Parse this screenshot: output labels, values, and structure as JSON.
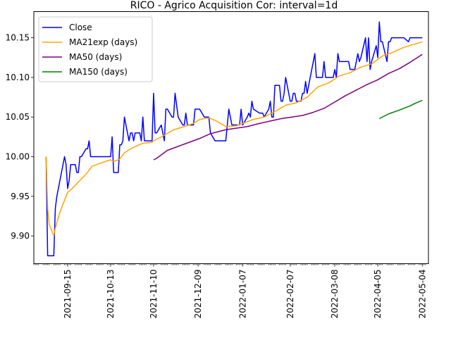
{
  "chart_data": {
    "type": "line",
    "title": "RICO - Agrico Acquisition Cor: interval=1d",
    "xlabel": "",
    "ylabel": "",
    "x_domain": [
      "2021-08-24",
      "2022-05-08"
    ],
    "ylim": [
      9.865,
      10.183
    ],
    "x_ticks": [
      "2021-09-15",
      "2021-10-13",
      "2021-11-10",
      "2021-12-09",
      "2022-01-07",
      "2022-02-07",
      "2022-03-08",
      "2022-04-05",
      "2022-05-04"
    ],
    "y_ticks": [
      "9.90",
      "9.95",
      "10.00",
      "10.05",
      "10.10",
      "10.15"
    ],
    "legend": {
      "position": "top-left",
      "entries": [
        "Close",
        "MA21exp (days)",
        "MA50 (days)",
        "MA150 (days)"
      ]
    },
    "colors": {
      "Close": "#0000ff",
      "MA21exp (days)": "#ffa500",
      "MA50 (days)": "#800080",
      "MA150 (days)": "#008000"
    },
    "series": [
      {
        "name": "Close",
        "points": [
          [
            "2021-09-01",
            10.0
          ],
          [
            "2021-09-02",
            9.875
          ],
          [
            "2021-09-03",
            9.875
          ],
          [
            "2021-09-06",
            9.875
          ],
          [
            "2021-09-07",
            9.935
          ],
          [
            "2021-09-08",
            9.95
          ],
          [
            "2021-09-09",
            9.96
          ],
          [
            "2021-09-10",
            9.97
          ],
          [
            "2021-09-13",
            10.0
          ],
          [
            "2021-09-14",
            9.99
          ],
          [
            "2021-09-15",
            9.96
          ],
          [
            "2021-09-16",
            9.97
          ],
          [
            "2021-09-17",
            9.99
          ],
          [
            "2021-09-20",
            9.99
          ],
          [
            "2021-09-21",
            9.98
          ],
          [
            "2021-09-22",
            9.98
          ],
          [
            "2021-09-23",
            10.0
          ],
          [
            "2021-09-24",
            10.0
          ],
          [
            "2021-09-27",
            10.01
          ],
          [
            "2021-09-28",
            10.01
          ],
          [
            "2021-09-29",
            10.02
          ],
          [
            "2021-09-30",
            10.0
          ],
          [
            "2021-10-01",
            10.0
          ],
          [
            "2021-10-04",
            10.0
          ],
          [
            "2021-10-05",
            10.0
          ],
          [
            "2021-10-06",
            10.0
          ],
          [
            "2021-10-07",
            10.0
          ],
          [
            "2021-10-08",
            10.0
          ],
          [
            "2021-10-11",
            10.0
          ],
          [
            "2021-10-12",
            10.0
          ],
          [
            "2021-10-13",
            10.0
          ],
          [
            "2021-10-14",
            10.025
          ],
          [
            "2021-10-15",
            9.98
          ],
          [
            "2021-10-18",
            9.98
          ],
          [
            "2021-10-19",
            10.015
          ],
          [
            "2021-10-20",
            10.015
          ],
          [
            "2021-10-21",
            10.02
          ],
          [
            "2021-10-22",
            10.05
          ],
          [
            "2021-10-25",
            10.02
          ],
          [
            "2021-10-26",
            10.03
          ],
          [
            "2021-10-27",
            10.03
          ],
          [
            "2021-10-28",
            10.02
          ],
          [
            "2021-10-29",
            10.03
          ],
          [
            "2021-11-01",
            10.03
          ],
          [
            "2021-11-02",
            10.02
          ],
          [
            "2021-11-03",
            10.05
          ],
          [
            "2021-11-04",
            10.02
          ],
          [
            "2021-11-05",
            10.02
          ],
          [
            "2021-11-08",
            10.02
          ],
          [
            "2021-11-09",
            10.02
          ],
          [
            "2021-11-10",
            10.08
          ],
          [
            "2021-11-11",
            10.03
          ],
          [
            "2021-11-12",
            10.03
          ],
          [
            "2021-11-15",
            10.04
          ],
          [
            "2021-11-16",
            10.03
          ],
          [
            "2021-11-17",
            10.02
          ],
          [
            "2021-11-18",
            10.06
          ],
          [
            "2021-11-19",
            10.06
          ],
          [
            "2021-11-22",
            10.05
          ],
          [
            "2021-11-23",
            10.05
          ],
          [
            "2021-11-24",
            10.08
          ],
          [
            "2021-11-26",
            10.05
          ],
          [
            "2021-11-29",
            10.04
          ],
          [
            "2021-11-30",
            10.04
          ],
          [
            "2021-12-01",
            10.055
          ],
          [
            "2021-12-02",
            10.04
          ],
          [
            "2021-12-03",
            10.04
          ],
          [
            "2021-12-06",
            10.04
          ],
          [
            "2021-12-07",
            10.06
          ],
          [
            "2021-12-08",
            10.06
          ],
          [
            "2021-12-09",
            10.06
          ],
          [
            "2021-12-10",
            10.06
          ],
          [
            "2021-12-13",
            10.05
          ],
          [
            "2021-12-14",
            10.05
          ],
          [
            "2021-12-15",
            10.05
          ],
          [
            "2021-12-16",
            10.05
          ],
          [
            "2021-12-17",
            10.03
          ],
          [
            "2021-12-20",
            10.02
          ],
          [
            "2021-12-21",
            10.02
          ],
          [
            "2021-12-22",
            10.02
          ],
          [
            "2021-12-23",
            10.02
          ],
          [
            "2021-12-27",
            10.02
          ],
          [
            "2021-12-28",
            10.04
          ],
          [
            "2021-12-29",
            10.06
          ],
          [
            "2021-12-30",
            10.05
          ],
          [
            "2021-12-31",
            10.04
          ],
          [
            "2022-01-03",
            10.04
          ],
          [
            "2022-01-04",
            10.04
          ],
          [
            "2022-01-05",
            10.04
          ],
          [
            "2022-01-06",
            10.06
          ],
          [
            "2022-01-07",
            10.04
          ],
          [
            "2022-01-10",
            10.05
          ],
          [
            "2022-01-11",
            10.055
          ],
          [
            "2022-01-12",
            10.05
          ],
          [
            "2022-01-13",
            10.07
          ],
          [
            "2022-01-14",
            10.06
          ],
          [
            "2022-01-18",
            10.055
          ],
          [
            "2022-01-19",
            10.055
          ],
          [
            "2022-01-20",
            10.055
          ],
          [
            "2022-01-21",
            10.05
          ],
          [
            "2022-01-24",
            10.06
          ],
          [
            "2022-01-25",
            10.07
          ],
          [
            "2022-01-26",
            10.05
          ],
          [
            "2022-01-27",
            10.05
          ],
          [
            "2022-01-28",
            10.09
          ],
          [
            "2022-01-31",
            10.09
          ],
          [
            "2022-02-01",
            10.07
          ],
          [
            "2022-02-02",
            10.07
          ],
          [
            "2022-02-03",
            10.08
          ],
          [
            "2022-02-04",
            10.1
          ],
          [
            "2022-02-07",
            10.07
          ],
          [
            "2022-02-08",
            10.07
          ],
          [
            "2022-02-09",
            10.08
          ],
          [
            "2022-02-10",
            10.08
          ],
          [
            "2022-02-11",
            10.07
          ],
          [
            "2022-02-14",
            10.07
          ],
          [
            "2022-02-15",
            10.08
          ],
          [
            "2022-02-16",
            10.08
          ],
          [
            "2022-02-17",
            10.095
          ],
          [
            "2022-02-18",
            10.08
          ],
          [
            "2022-02-22",
            10.12
          ],
          [
            "2022-02-23",
            10.13
          ],
          [
            "2022-02-24",
            10.1
          ],
          [
            "2022-02-25",
            10.1
          ],
          [
            "2022-02-28",
            10.1
          ],
          [
            "2022-03-01",
            10.12
          ],
          [
            "2022-03-02",
            10.1
          ],
          [
            "2022-03-03",
            10.1
          ],
          [
            "2022-03-04",
            10.1
          ],
          [
            "2022-03-07",
            10.1
          ],
          [
            "2022-03-08",
            10.11
          ],
          [
            "2022-03-09",
            10.1
          ],
          [
            "2022-03-10",
            10.13
          ],
          [
            "2022-03-11",
            10.12
          ],
          [
            "2022-03-14",
            10.12
          ],
          [
            "2022-03-15",
            10.12
          ],
          [
            "2022-03-16",
            10.12
          ],
          [
            "2022-03-17",
            10.12
          ],
          [
            "2022-03-18",
            10.11
          ],
          [
            "2022-03-21",
            10.11
          ],
          [
            "2022-03-22",
            10.12
          ],
          [
            "2022-03-23",
            10.13
          ],
          [
            "2022-03-24",
            10.12
          ],
          [
            "2022-03-25",
            10.125
          ],
          [
            "2022-03-28",
            10.15
          ],
          [
            "2022-03-29",
            10.12
          ],
          [
            "2022-03-30",
            10.15
          ],
          [
            "2022-03-31",
            10.11
          ],
          [
            "2022-04-01",
            10.12
          ],
          [
            "2022-04-04",
            10.14
          ],
          [
            "2022-04-05",
            10.125
          ],
          [
            "2022-04-06",
            10.17
          ],
          [
            "2022-04-07",
            10.145
          ],
          [
            "2022-04-08",
            10.145
          ],
          [
            "2022-04-11",
            10.12
          ],
          [
            "2022-04-12",
            10.145
          ],
          [
            "2022-04-13",
            10.145
          ],
          [
            "2022-04-14",
            10.15
          ],
          [
            "2022-04-18",
            10.15
          ],
          [
            "2022-04-19",
            10.15
          ],
          [
            "2022-04-20",
            10.15
          ],
          [
            "2022-04-21",
            10.15
          ],
          [
            "2022-04-22",
            10.15
          ],
          [
            "2022-04-25",
            10.145
          ],
          [
            "2022-04-26",
            10.15
          ],
          [
            "2022-04-27",
            10.15
          ],
          [
            "2022-04-28",
            10.15
          ],
          [
            "2022-04-29",
            10.15
          ],
          [
            "2022-05-02",
            10.15
          ],
          [
            "2022-05-03",
            10.15
          ],
          [
            "2022-05-04",
            10.15
          ]
        ]
      },
      {
        "name": "MA21exp (days)",
        "points": [
          [
            "2021-09-01",
            10.0
          ],
          [
            "2021-09-02",
            9.935
          ],
          [
            "2021-09-03",
            9.915
          ],
          [
            "2021-09-06",
            9.9
          ],
          [
            "2021-09-07",
            9.91
          ],
          [
            "2021-09-10",
            9.93
          ],
          [
            "2021-09-15",
            9.955
          ],
          [
            "2021-09-17",
            9.958
          ],
          [
            "2021-09-22",
            9.968
          ],
          [
            "2021-09-27",
            9.978
          ],
          [
            "2021-10-01",
            9.988
          ],
          [
            "2021-10-08",
            9.993
          ],
          [
            "2021-10-13",
            9.996
          ],
          [
            "2021-10-15",
            9.994
          ],
          [
            "2021-10-19",
            9.997
          ],
          [
            "2021-10-22",
            10.005
          ],
          [
            "2021-10-28",
            10.012
          ],
          [
            "2021-11-03",
            10.017
          ],
          [
            "2021-11-09",
            10.018
          ],
          [
            "2021-11-10",
            10.02
          ],
          [
            "2021-11-16",
            10.026
          ],
          [
            "2021-11-23",
            10.034
          ],
          [
            "2021-11-30",
            10.038
          ],
          [
            "2021-12-06",
            10.042
          ],
          [
            "2021-12-10",
            10.047
          ],
          [
            "2021-12-16",
            10.049
          ],
          [
            "2021-12-21",
            10.045
          ],
          [
            "2021-12-27",
            10.038
          ],
          [
            "2022-01-03",
            10.039
          ],
          [
            "2022-01-07",
            10.042
          ],
          [
            "2022-01-14",
            10.047
          ],
          [
            "2022-01-21",
            10.05
          ],
          [
            "2022-01-28",
            10.057
          ],
          [
            "2022-02-04",
            10.065
          ],
          [
            "2022-02-11",
            10.068
          ],
          [
            "2022-02-18",
            10.075
          ],
          [
            "2022-02-25",
            10.088
          ],
          [
            "2022-03-04",
            10.093
          ],
          [
            "2022-03-11",
            10.102
          ],
          [
            "2022-03-18",
            10.106
          ],
          [
            "2022-03-25",
            10.113
          ],
          [
            "2022-04-01",
            10.117
          ],
          [
            "2022-04-08",
            10.127
          ],
          [
            "2022-04-14",
            10.131
          ],
          [
            "2022-04-22",
            10.138
          ],
          [
            "2022-04-29",
            10.142
          ],
          [
            "2022-05-04",
            10.145
          ]
        ]
      },
      {
        "name": "MA50 (days)",
        "points": [
          [
            "2021-11-10",
            9.996
          ],
          [
            "2021-11-12",
            9.998
          ],
          [
            "2021-11-19",
            10.008
          ],
          [
            "2021-11-26",
            10.013
          ],
          [
            "2021-12-03",
            10.018
          ],
          [
            "2021-12-10",
            10.023
          ],
          [
            "2021-12-17",
            10.029
          ],
          [
            "2021-12-27",
            10.034
          ],
          [
            "2022-01-03",
            10.036
          ],
          [
            "2022-01-10",
            10.038
          ],
          [
            "2022-01-18",
            10.042
          ],
          [
            "2022-01-25",
            10.045
          ],
          [
            "2022-02-01",
            10.048
          ],
          [
            "2022-02-08",
            10.05
          ],
          [
            "2022-02-15",
            10.052
          ],
          [
            "2022-02-22",
            10.056
          ],
          [
            "2022-03-01",
            10.061
          ],
          [
            "2022-03-08",
            10.069
          ],
          [
            "2022-03-15",
            10.077
          ],
          [
            "2022-03-22",
            10.084
          ],
          [
            "2022-03-29",
            10.091
          ],
          [
            "2022-04-05",
            10.097
          ],
          [
            "2022-04-12",
            10.105
          ],
          [
            "2022-04-19",
            10.111
          ],
          [
            "2022-04-26",
            10.119
          ],
          [
            "2022-05-04",
            10.129
          ]
        ]
      },
      {
        "name": "MA150 (days)",
        "points": [
          [
            "2022-04-06",
            10.048
          ],
          [
            "2022-04-08",
            10.05
          ],
          [
            "2022-04-12",
            10.054
          ],
          [
            "2022-04-18",
            10.058
          ],
          [
            "2022-04-22",
            10.061
          ],
          [
            "2022-04-26",
            10.064
          ],
          [
            "2022-04-29",
            10.067
          ],
          [
            "2022-05-04",
            10.071
          ]
        ]
      }
    ]
  }
}
